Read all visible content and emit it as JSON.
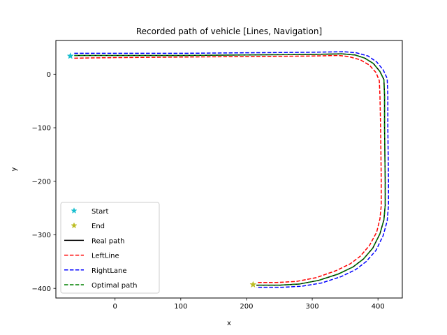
{
  "chart_data": {
    "type": "line",
    "title": "Recorded path of vehicle [Lines, Navigation]",
    "xlabel": "x",
    "ylabel": "y",
    "xlim": [
      -90,
      437
    ],
    "ylim": [
      -418,
      63
    ],
    "xticks": [
      0,
      100,
      200,
      300,
      400
    ],
    "yticks": [
      0,
      -100,
      -200,
      -300,
      -400
    ],
    "grid": false,
    "legend_position": "lower-left",
    "markers": [
      {
        "name": "Start",
        "x": -68,
        "y": 34,
        "color": "#17becf",
        "symbol": "star"
      },
      {
        "name": "End",
        "x": 210,
        "y": -393,
        "color": "#bcbd22",
        "symbol": "star"
      }
    ],
    "series": [
      {
        "name": "Real path",
        "color": "#000000",
        "dash": "solid",
        "points": [
          [
            -62,
            35
          ],
          [
            0,
            35
          ],
          [
            100,
            35
          ],
          [
            200,
            36
          ],
          [
            300,
            37
          ],
          [
            345,
            38
          ],
          [
            365,
            36
          ],
          [
            380,
            30
          ],
          [
            393,
            20
          ],
          [
            403,
            5
          ],
          [
            409,
            -10
          ],
          [
            410,
            -40
          ],
          [
            410,
            -100
          ],
          [
            411,
            -200
          ],
          [
            411,
            -245
          ],
          [
            409,
            -272
          ],
          [
            403,
            -298
          ],
          [
            392,
            -325
          ],
          [
            378,
            -345
          ],
          [
            362,
            -360
          ],
          [
            340,
            -373
          ],
          [
            310,
            -385
          ],
          [
            280,
            -392
          ],
          [
            250,
            -394
          ],
          [
            215,
            -394
          ]
        ]
      },
      {
        "name": "LeftLine",
        "color": "#ff0000",
        "dash": "dashed",
        "points": [
          [
            -62,
            30
          ],
          [
            0,
            31
          ],
          [
            100,
            32
          ],
          [
            200,
            33
          ],
          [
            300,
            34
          ],
          [
            340,
            35
          ],
          [
            355,
            33
          ],
          [
            373,
            27
          ],
          [
            387,
            17
          ],
          [
            397,
            3
          ],
          [
            402,
            -12
          ],
          [
            403,
            -40
          ],
          [
            404,
            -100
          ],
          [
            405,
            -200
          ],
          [
            405,
            -245
          ],
          [
            403,
            -270
          ],
          [
            398,
            -295
          ],
          [
            387,
            -320
          ],
          [
            373,
            -340
          ],
          [
            358,
            -354
          ],
          [
            336,
            -367
          ],
          [
            306,
            -380
          ],
          [
            276,
            -387
          ],
          [
            246,
            -389
          ],
          [
            215,
            -389
          ]
        ]
      },
      {
        "name": "RightLane",
        "color": "#0000ff",
        "dash": "dashed",
        "points": [
          [
            -62,
            39
          ],
          [
            0,
            39
          ],
          [
            100,
            39
          ],
          [
            200,
            40
          ],
          [
            300,
            41
          ],
          [
            348,
            42
          ],
          [
            367,
            40
          ],
          [
            385,
            34
          ],
          [
            398,
            23
          ],
          [
            408,
            8
          ],
          [
            414,
            -8
          ],
          [
            415,
            -40
          ],
          [
            415,
            -100
          ],
          [
            416,
            -200
          ],
          [
            416,
            -245
          ],
          [
            414,
            -274
          ],
          [
            408,
            -301
          ],
          [
            397,
            -329
          ],
          [
            382,
            -350
          ],
          [
            366,
            -365
          ],
          [
            344,
            -378
          ],
          [
            314,
            -390
          ],
          [
            284,
            -396
          ],
          [
            254,
            -398
          ],
          [
            215,
            -398
          ]
        ]
      },
      {
        "name": "Optimal path",
        "color": "#008000",
        "dash": "dashed",
        "points": [
          [
            -62,
            35
          ],
          [
            0,
            35
          ],
          [
            100,
            35
          ],
          [
            200,
            36
          ],
          [
            300,
            37
          ],
          [
            345,
            38
          ],
          [
            365,
            36
          ],
          [
            380,
            30
          ],
          [
            393,
            20
          ],
          [
            403,
            5
          ],
          [
            409,
            -10
          ],
          [
            410,
            -40
          ],
          [
            410,
            -100
          ],
          [
            411,
            -200
          ],
          [
            411,
            -245
          ],
          [
            409,
            -272
          ],
          [
            403,
            -298
          ],
          [
            392,
            -325
          ],
          [
            378,
            -345
          ],
          [
            362,
            -360
          ],
          [
            340,
            -373
          ],
          [
            310,
            -385
          ],
          [
            280,
            -392
          ],
          [
            250,
            -394
          ],
          [
            215,
            -394
          ]
        ]
      }
    ],
    "legend": [
      "Start",
      "End",
      "Real path",
      "LeftLine",
      "RightLane",
      "Optimal path"
    ]
  }
}
